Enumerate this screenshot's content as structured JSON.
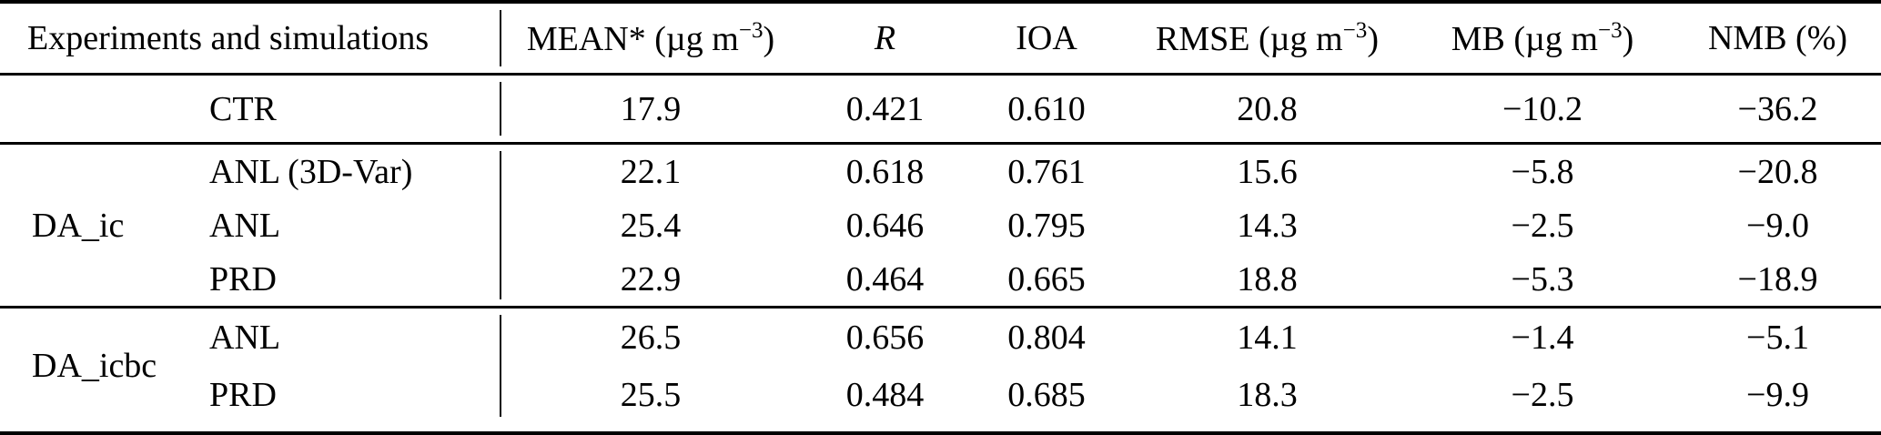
{
  "table": {
    "header": {
      "col_experiments": "Experiments and simulations",
      "mean_pre": "MEAN* (µg m",
      "mean_sup": "−3",
      "mean_post": ")",
      "r": "R",
      "ioa": "IOA",
      "rmse_pre": "RMSE (µg m",
      "rmse_sup": "−3",
      "rmse_post": ")",
      "mb_pre": "MB (µg m",
      "mb_sup": "−3",
      "mb_post": ")",
      "nmb": "NMB (%)"
    },
    "sections": [
      {
        "group": "",
        "rows": [
          {
            "sim": "CTR",
            "values": [
              "17.9",
              "0.421",
              "0.610",
              "20.8",
              "−10.2",
              "−36.2"
            ]
          }
        ]
      },
      {
        "group": "DA_ic",
        "rows": [
          {
            "sim": "ANL (3D-Var)",
            "values": [
              "22.1",
              "0.618",
              "0.761",
              "15.6",
              "−5.8",
              "−20.8"
            ]
          },
          {
            "sim": "ANL",
            "values": [
              "25.4",
              "0.646",
              "0.795",
              "14.3",
              "−2.5",
              "−9.0"
            ]
          },
          {
            "sim": "PRD",
            "values": [
              "22.9",
              "0.464",
              "0.665",
              "18.8",
              "−5.3",
              "−18.9"
            ]
          }
        ]
      },
      {
        "group": "DA_icbc",
        "rows": [
          {
            "sim": "ANL",
            "values": [
              "26.5",
              "0.656",
              "0.804",
              "14.1",
              "−1.4",
              "−5.1"
            ]
          },
          {
            "sim": "PRD",
            "values": [
              "25.5",
              "0.484",
              "0.685",
              "18.3",
              "−2.5",
              "−9.9"
            ]
          }
        ]
      }
    ]
  },
  "chart_data": {
    "type": "table",
    "columns": [
      "Experiment",
      "Simulation",
      "MEAN* (µg m−3)",
      "R",
      "IOA",
      "RMSE (µg m−3)",
      "MB (µg m−3)",
      "NMB (%)"
    ],
    "rows": [
      [
        "",
        "CTR",
        17.9,
        0.421,
        0.61,
        20.8,
        -10.2,
        -36.2
      ],
      [
        "DA_ic",
        "ANL (3D-Var)",
        22.1,
        0.618,
        0.761,
        15.6,
        -5.8,
        -20.8
      ],
      [
        "DA_ic",
        "ANL",
        25.4,
        0.646,
        0.795,
        14.3,
        -2.5,
        -9.0
      ],
      [
        "DA_ic",
        "PRD",
        22.9,
        0.464,
        0.665,
        18.8,
        -5.3,
        -18.9
      ],
      [
        "DA_icbc",
        "ANL",
        26.5,
        0.656,
        0.804,
        14.1,
        -1.4,
        -5.1
      ],
      [
        "DA_icbc",
        "PRD",
        25.5,
        0.484,
        0.685,
        18.3,
        -2.5,
        -9.9
      ]
    ]
  },
  "colors": {
    "text": "#000000",
    "background": "#ffffff",
    "rule": "#000000"
  }
}
